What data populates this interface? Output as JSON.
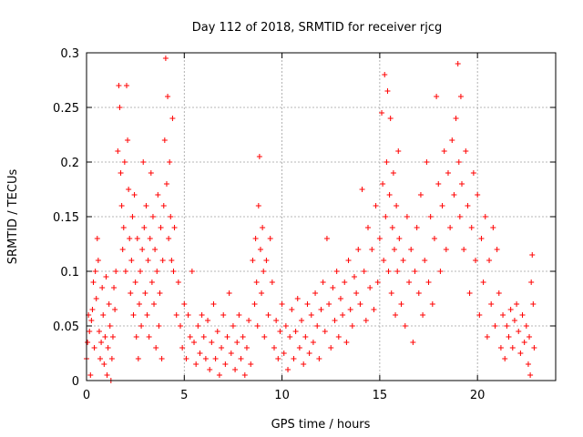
{
  "chart_data": {
    "type": "scatter",
    "title": "Day 112 of 2018, SRMTID for receiver rjcg",
    "xlabel": "GPS time / hours",
    "ylabel": "SRMTID / TECUs",
    "xlim": [
      0,
      24
    ],
    "ylim": [
      0,
      0.3
    ],
    "x_ticks": [
      0,
      5,
      10,
      15,
      20
    ],
    "x_tick_labels": [
      "0",
      "5",
      "10",
      "15",
      "20"
    ],
    "y_ticks": [
      0,
      0.05,
      0.1,
      0.15,
      0.2,
      0.25,
      0.3
    ],
    "y_tick_labels": [
      "0",
      "0.05",
      "0.1",
      "0.15",
      "0.2",
      "0.25",
      "0.3"
    ],
    "grid": true,
    "marker": "+",
    "series": [
      {
        "name": "SRMTID",
        "color": "#ff0000",
        "points": [
          [
            0.0,
            0.02
          ],
          [
            0.05,
            0.035
          ],
          [
            0.1,
            0.06
          ],
          [
            0.15,
            0.045
          ],
          [
            0.2,
            0.005
          ],
          [
            0.25,
            0.055
          ],
          [
            0.3,
            0.065
          ],
          [
            0.35,
            0.09
          ],
          [
            0.4,
            0.03
          ],
          [
            0.45,
            0.1
          ],
          [
            0.5,
            0.075
          ],
          [
            0.55,
            0.13
          ],
          [
            0.6,
            0.11
          ],
          [
            0.65,
            0.045
          ],
          [
            0.7,
            0.02
          ],
          [
            0.75,
            0.035
          ],
          [
            0.8,
            0.085
          ],
          [
            0.85,
            0.06
          ],
          [
            0.9,
            0.015
          ],
          [
            0.95,
            0.04
          ],
          [
            1.0,
            0.095
          ],
          [
            1.05,
            0.005
          ],
          [
            1.1,
            0.03
          ],
          [
            1.15,
            0.07
          ],
          [
            1.2,
            0.05
          ],
          [
            1.25,
            0.0
          ],
          [
            1.3,
            0.02
          ],
          [
            1.35,
            0.04
          ],
          [
            1.4,
            0.085
          ],
          [
            1.45,
            0.065
          ],
          [
            1.5,
            0.1
          ],
          [
            1.6,
            0.21
          ],
          [
            1.65,
            0.27
          ],
          [
            1.7,
            0.25
          ],
          [
            1.75,
            0.19
          ],
          [
            1.8,
            0.16
          ],
          [
            1.85,
            0.12
          ],
          [
            1.9,
            0.14
          ],
          [
            1.95,
            0.2
          ],
          [
            2.0,
            0.1
          ],
          [
            2.05,
            0.27
          ],
          [
            2.1,
            0.22
          ],
          [
            2.15,
            0.175
          ],
          [
            2.2,
            0.13
          ],
          [
            2.25,
            0.08
          ],
          [
            2.3,
            0.11
          ],
          [
            2.35,
            0.15
          ],
          [
            2.4,
            0.06
          ],
          [
            2.45,
            0.17
          ],
          [
            2.5,
            0.09
          ],
          [
            2.55,
            0.04
          ],
          [
            2.6,
            0.13
          ],
          [
            2.65,
            0.02
          ],
          [
            2.7,
            0.07
          ],
          [
            2.75,
            0.1
          ],
          [
            2.8,
            0.05
          ],
          [
            2.85,
            0.12
          ],
          [
            2.9,
            0.2
          ],
          [
            2.95,
            0.14
          ],
          [
            3.0,
            0.08
          ],
          [
            3.05,
            0.16
          ],
          [
            3.1,
            0.06
          ],
          [
            3.15,
            0.11
          ],
          [
            3.2,
            0.04
          ],
          [
            3.25,
            0.13
          ],
          [
            3.3,
            0.19
          ],
          [
            3.35,
            0.09
          ],
          [
            3.4,
            0.15
          ],
          [
            3.45,
            0.07
          ],
          [
            3.5,
            0.12
          ],
          [
            3.55,
            0.03
          ],
          [
            3.6,
            0.1
          ],
          [
            3.65,
            0.17
          ],
          [
            3.7,
            0.05
          ],
          [
            3.75,
            0.08
          ],
          [
            3.8,
            0.14
          ],
          [
            3.85,
            0.02
          ],
          [
            3.9,
            0.11
          ],
          [
            3.95,
            0.16
          ],
          [
            4.0,
            0.22
          ],
          [
            4.05,
            0.295
          ],
          [
            4.1,
            0.18
          ],
          [
            4.15,
            0.26
          ],
          [
            4.2,
            0.13
          ],
          [
            4.25,
            0.2
          ],
          [
            4.3,
            0.15
          ],
          [
            4.35,
            0.11
          ],
          [
            4.4,
            0.24
          ],
          [
            4.45,
            0.1
          ],
          [
            4.5,
            0.14
          ],
          [
            4.6,
            0.06
          ],
          [
            4.7,
            0.09
          ],
          [
            4.8,
            0.05
          ],
          [
            4.9,
            0.03
          ],
          [
            5.0,
            0.07
          ],
          [
            5.1,
            0.02
          ],
          [
            5.2,
            0.06
          ],
          [
            5.3,
            0.04
          ],
          [
            5.4,
            0.1
          ],
          [
            5.5,
            0.035
          ],
          [
            5.6,
            0.015
          ],
          [
            5.7,
            0.05
          ],
          [
            5.8,
            0.025
          ],
          [
            5.9,
            0.06
          ],
          [
            6.0,
            0.04
          ],
          [
            6.1,
            0.02
          ],
          [
            6.2,
            0.055
          ],
          [
            6.3,
            0.01
          ],
          [
            6.4,
            0.035
          ],
          [
            6.5,
            0.07
          ],
          [
            6.6,
            0.02
          ],
          [
            6.7,
            0.045
          ],
          [
            6.8,
            0.005
          ],
          [
            6.9,
            0.03
          ],
          [
            7.0,
            0.06
          ],
          [
            7.1,
            0.015
          ],
          [
            7.2,
            0.04
          ],
          [
            7.3,
            0.08
          ],
          [
            7.4,
            0.025
          ],
          [
            7.5,
            0.05
          ],
          [
            7.6,
            0.01
          ],
          [
            7.7,
            0.035
          ],
          [
            7.8,
            0.06
          ],
          [
            7.9,
            0.02
          ],
          [
            8.0,
            0.04
          ],
          [
            8.1,
            0.005
          ],
          [
            8.2,
            0.03
          ],
          [
            8.3,
            0.055
          ],
          [
            8.4,
            0.015
          ],
          [
            8.5,
            0.11
          ],
          [
            8.6,
            0.07
          ],
          [
            8.65,
            0.13
          ],
          [
            8.7,
            0.09
          ],
          [
            8.75,
            0.05
          ],
          [
            8.8,
            0.16
          ],
          [
            8.85,
            0.205
          ],
          [
            8.9,
            0.12
          ],
          [
            8.95,
            0.08
          ],
          [
            9.0,
            0.14
          ],
          [
            9.05,
            0.1
          ],
          [
            9.1,
            0.04
          ],
          [
            9.2,
            0.11
          ],
          [
            9.3,
            0.06
          ],
          [
            9.4,
            0.13
          ],
          [
            9.5,
            0.09
          ],
          [
            9.6,
            0.03
          ],
          [
            9.7,
            0.055
          ],
          [
            9.8,
            0.02
          ],
          [
            9.9,
            0.045
          ],
          [
            10.0,
            0.07
          ],
          [
            10.1,
            0.025
          ],
          [
            10.2,
            0.05
          ],
          [
            10.3,
            0.01
          ],
          [
            10.4,
            0.04
          ],
          [
            10.5,
            0.065
          ],
          [
            10.6,
            0.02
          ],
          [
            10.7,
            0.045
          ],
          [
            10.8,
            0.075
          ],
          [
            10.9,
            0.03
          ],
          [
            11.0,
            0.055
          ],
          [
            11.1,
            0.015
          ],
          [
            11.2,
            0.04
          ],
          [
            11.3,
            0.07
          ],
          [
            11.4,
            0.025
          ],
          [
            11.5,
            0.06
          ],
          [
            11.6,
            0.035
          ],
          [
            11.7,
            0.08
          ],
          [
            11.8,
            0.05
          ],
          [
            11.9,
            0.02
          ],
          [
            12.0,
            0.065
          ],
          [
            12.1,
            0.09
          ],
          [
            12.2,
            0.045
          ],
          [
            12.3,
            0.13
          ],
          [
            12.4,
            0.07
          ],
          [
            12.5,
            0.03
          ],
          [
            12.6,
            0.085
          ],
          [
            12.7,
            0.055
          ],
          [
            12.8,
            0.1
          ],
          [
            12.9,
            0.04
          ],
          [
            13.0,
            0.075
          ],
          [
            13.1,
            0.06
          ],
          [
            13.2,
            0.09
          ],
          [
            13.3,
            0.035
          ],
          [
            13.4,
            0.11
          ],
          [
            13.5,
            0.065
          ],
          [
            13.6,
            0.05
          ],
          [
            13.7,
            0.095
          ],
          [
            13.8,
            0.08
          ],
          [
            13.9,
            0.12
          ],
          [
            14.0,
            0.07
          ],
          [
            14.1,
            0.175
          ],
          [
            14.2,
            0.1
          ],
          [
            14.3,
            0.055
          ],
          [
            14.4,
            0.14
          ],
          [
            14.5,
            0.085
          ],
          [
            14.6,
            0.12
          ],
          [
            14.7,
            0.065
          ],
          [
            14.8,
            0.16
          ],
          [
            14.9,
            0.09
          ],
          [
            15.0,
            0.13
          ],
          [
            15.1,
            0.245
          ],
          [
            15.15,
            0.18
          ],
          [
            15.2,
            0.11
          ],
          [
            15.25,
            0.28
          ],
          [
            15.3,
            0.15
          ],
          [
            15.35,
            0.2
          ],
          [
            15.4,
            0.265
          ],
          [
            15.45,
            0.1
          ],
          [
            15.5,
            0.17
          ],
          [
            15.55,
            0.24
          ],
          [
            15.6,
            0.08
          ],
          [
            15.65,
            0.14
          ],
          [
            15.7,
            0.19
          ],
          [
            15.75,
            0.12
          ],
          [
            15.8,
            0.06
          ],
          [
            15.85,
            0.16
          ],
          [
            15.9,
            0.1
          ],
          [
            15.95,
            0.21
          ],
          [
            16.0,
            0.13
          ],
          [
            16.1,
            0.07
          ],
          [
            16.2,
            0.11
          ],
          [
            16.3,
            0.05
          ],
          [
            16.4,
            0.15
          ],
          [
            16.5,
            0.09
          ],
          [
            16.6,
            0.12
          ],
          [
            16.7,
            0.035
          ],
          [
            16.8,
            0.1
          ],
          [
            16.9,
            0.14
          ],
          [
            17.0,
            0.08
          ],
          [
            17.1,
            0.17
          ],
          [
            17.2,
            0.06
          ],
          [
            17.3,
            0.11
          ],
          [
            17.4,
            0.2
          ],
          [
            17.5,
            0.09
          ],
          [
            17.6,
            0.15
          ],
          [
            17.7,
            0.07
          ],
          [
            17.8,
            0.13
          ],
          [
            17.9,
            0.26
          ],
          [
            18.0,
            0.18
          ],
          [
            18.1,
            0.1
          ],
          [
            18.2,
            0.16
          ],
          [
            18.3,
            0.21
          ],
          [
            18.4,
            0.12
          ],
          [
            18.5,
            0.19
          ],
          [
            18.6,
            0.14
          ],
          [
            18.7,
            0.22
          ],
          [
            18.8,
            0.17
          ],
          [
            18.9,
            0.24
          ],
          [
            19.0,
            0.29
          ],
          [
            19.05,
            0.2
          ],
          [
            19.1,
            0.15
          ],
          [
            19.15,
            0.26
          ],
          [
            19.2,
            0.18
          ],
          [
            19.3,
            0.12
          ],
          [
            19.4,
            0.21
          ],
          [
            19.5,
            0.16
          ],
          [
            19.6,
            0.08
          ],
          [
            19.7,
            0.14
          ],
          [
            19.8,
            0.19
          ],
          [
            19.9,
            0.11
          ],
          [
            20.0,
            0.17
          ],
          [
            20.1,
            0.06
          ],
          [
            20.2,
            0.13
          ],
          [
            20.3,
            0.09
          ],
          [
            20.4,
            0.15
          ],
          [
            20.5,
            0.04
          ],
          [
            20.6,
            0.11
          ],
          [
            20.7,
            0.07
          ],
          [
            20.8,
            0.14
          ],
          [
            20.9,
            0.05
          ],
          [
            21.0,
            0.12
          ],
          [
            21.1,
            0.08
          ],
          [
            21.2,
            0.03
          ],
          [
            21.3,
            0.06
          ],
          [
            21.4,
            0.02
          ],
          [
            21.5,
            0.05
          ],
          [
            21.6,
            0.04
          ],
          [
            21.7,
            0.065
          ],
          [
            21.8,
            0.03
          ],
          [
            21.9,
            0.055
          ],
          [
            22.0,
            0.07
          ],
          [
            22.1,
            0.045
          ],
          [
            22.2,
            0.025
          ],
          [
            22.3,
            0.06
          ],
          [
            22.4,
            0.035
          ],
          [
            22.5,
            0.05
          ],
          [
            22.6,
            0.015
          ],
          [
            22.65,
            0.04
          ],
          [
            22.7,
            0.005
          ],
          [
            22.75,
            0.09
          ],
          [
            22.8,
            0.115
          ],
          [
            22.85,
            0.07
          ],
          [
            22.9,
            0.03
          ]
        ]
      }
    ]
  }
}
